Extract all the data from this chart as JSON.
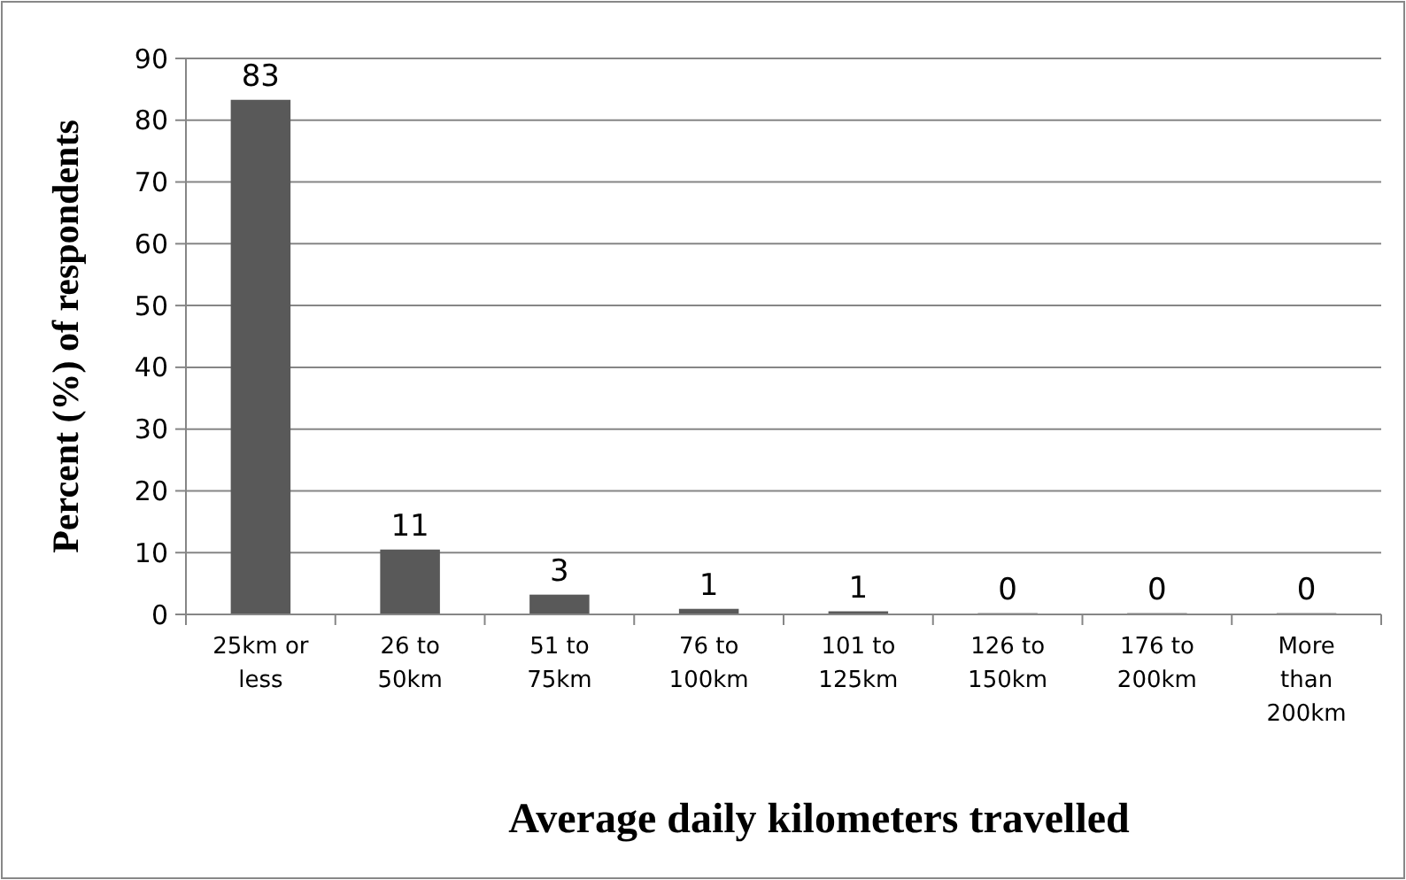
{
  "chart_data": {
    "type": "bar",
    "xlabel": "Average daily kilometers travelled",
    "ylabel": "Percent (%) of respondents",
    "categories": [
      "25km or less",
      "26 to 50km",
      "51 to 75km",
      "76 to 100km",
      "101 to 125km",
      "126 to 150km",
      "176 to 200km",
      "More than 200km"
    ],
    "values": [
      83.3,
      10.5,
      3.2,
      0.9,
      0.5,
      0.2,
      0.2,
      0.2
    ],
    "value_labels": [
      "83",
      "11",
      "3",
      "1",
      "1",
      "0",
      "0",
      "0"
    ],
    "color": "#595959",
    "ylim": [
      0,
      90
    ],
    "yticks": [
      0,
      10,
      20,
      30,
      40,
      50,
      60,
      70,
      80,
      90
    ],
    "grid": "y"
  }
}
